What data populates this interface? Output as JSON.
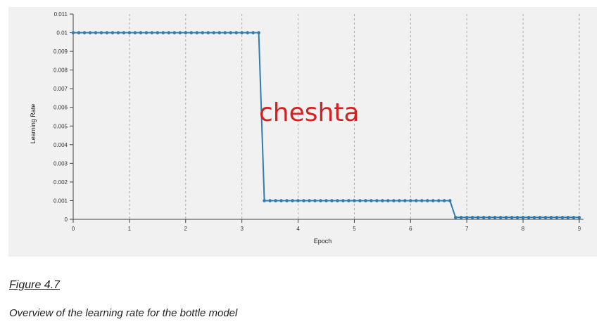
{
  "chart_data": {
    "type": "line",
    "xlabel": "Epoch",
    "ylabel": "Learning Rate",
    "xlim": [
      0,
      9
    ],
    "ylim": [
      0,
      0.011
    ],
    "x_ticks": [
      "0",
      "1",
      "2",
      "3",
      "4",
      "5",
      "6",
      "7",
      "8",
      "9"
    ],
    "y_ticks": [
      "0",
      "0.001",
      "0.002",
      "0.003",
      "0.004",
      "0.005",
      "0.006",
      "0.007",
      "0.008",
      "0.009",
      "0.01",
      "0.011"
    ],
    "grid": "vertical-dashed",
    "color": "#2f7db0",
    "series": [
      {
        "x": [
          0,
          0.1,
          0.2,
          0.3,
          0.4,
          0.5,
          0.6,
          0.7,
          0.8,
          0.9,
          1.0,
          1.1,
          1.2,
          1.3,
          1.4,
          1.5,
          1.6,
          1.7,
          1.8,
          1.9,
          2.0,
          2.1,
          2.2,
          2.3,
          2.4,
          2.5,
          2.6,
          2.7,
          2.8,
          2.9,
          3.0,
          3.1,
          3.2,
          3.3,
          3.4,
          3.5,
          3.6,
          3.7,
          3.8,
          3.9,
          4.0,
          4.1,
          4.2,
          4.3,
          4.4,
          4.5,
          4.6,
          4.7,
          4.8,
          4.9,
          5.0,
          5.1,
          5.2,
          5.3,
          5.4,
          5.5,
          5.6,
          5.7,
          5.8,
          5.9,
          6.0,
          6.1,
          6.2,
          6.3,
          6.4,
          6.5,
          6.6,
          6.7,
          6.8,
          6.9,
          7.0,
          7.1,
          7.2,
          7.3,
          7.4,
          7.5,
          7.6,
          7.7,
          7.8,
          7.9,
          8.0,
          8.1,
          8.2,
          8.3,
          8.4,
          8.5,
          8.6,
          8.7,
          8.8,
          8.9,
          9.0
        ],
        "y": [
          0.01,
          0.01,
          0.01,
          0.01,
          0.01,
          0.01,
          0.01,
          0.01,
          0.01,
          0.01,
          0.01,
          0.01,
          0.01,
          0.01,
          0.01,
          0.01,
          0.01,
          0.01,
          0.01,
          0.01,
          0.01,
          0.01,
          0.01,
          0.01,
          0.01,
          0.01,
          0.01,
          0.01,
          0.01,
          0.01,
          0.01,
          0.01,
          0.01,
          0.01,
          0.001,
          0.001,
          0.001,
          0.001,
          0.001,
          0.001,
          0.001,
          0.001,
          0.001,
          0.001,
          0.001,
          0.001,
          0.001,
          0.001,
          0.001,
          0.001,
          0.001,
          0.001,
          0.001,
          0.001,
          0.001,
          0.001,
          0.001,
          0.001,
          0.001,
          0.001,
          0.001,
          0.001,
          0.001,
          0.001,
          0.001,
          0.001,
          0.001,
          0.001,
          0.0001,
          0.0001,
          0.0001,
          0.0001,
          0.0001,
          0.0001,
          0.0001,
          0.0001,
          0.0001,
          0.0001,
          0.0001,
          0.0001,
          0.0001,
          0.0001,
          0.0001,
          0.0001,
          0.0001,
          0.0001,
          0.0001,
          0.0001,
          0.0001,
          0.0001,
          0.0001
        ]
      }
    ]
  },
  "watermark": "cheshta",
  "figure": {
    "label": "Figure 4.7",
    "caption": "Overview of the learning rate for the bottle model"
  }
}
